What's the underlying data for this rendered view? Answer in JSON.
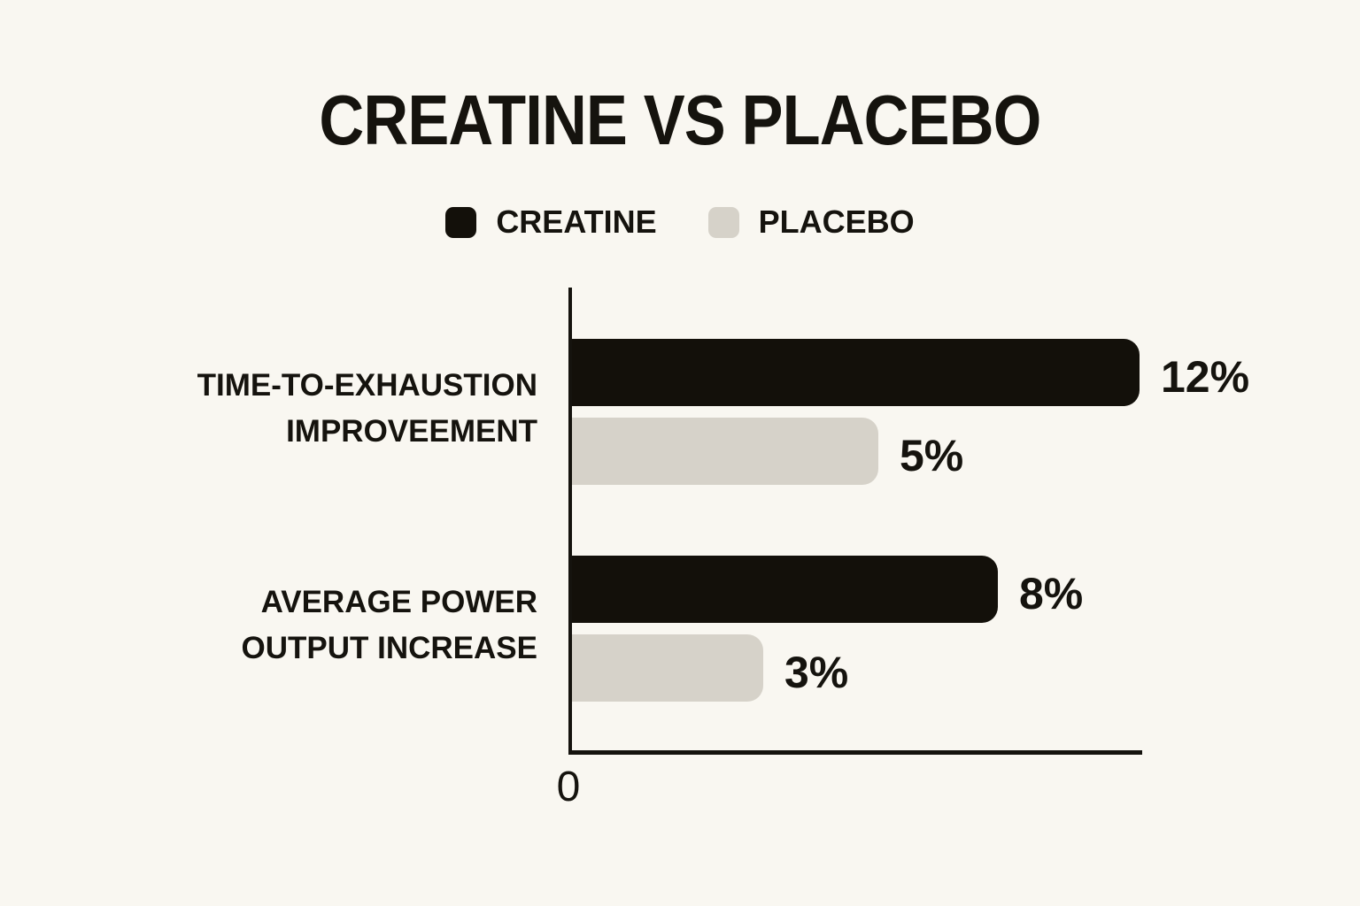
{
  "page": {
    "background": "#f9f7f1",
    "text_color": "#15130e"
  },
  "title": "CREATINE VS PLACEBO",
  "legend": {
    "position": "top",
    "items": [
      {
        "label": "CREATINE",
        "color": "#13100a"
      },
      {
        "label": "PLACEBO",
        "color": "#d6d2c9"
      }
    ]
  },
  "chart_data": {
    "type": "bar",
    "orientation": "horizontal",
    "title": "CREATINE VS PLACEBO",
    "categories": [
      {
        "lines": [
          "TIME-TO-EXHAUSTION",
          "IMPROVEEMENT"
        ]
      },
      {
        "lines": [
          "AVERAGE POWER",
          "OUTPUT INCREASE"
        ]
      }
    ],
    "series": [
      {
        "name": "CREATINE",
        "color": "#13100a",
        "values": [
          12,
          8
        ],
        "value_labels": [
          "12%",
          "8%"
        ],
        "bar_length_pct_of_axis": [
          98.9,
          74.2
        ]
      },
      {
        "name": "PLACEBO",
        "color": "#d6d2c9",
        "values": [
          5,
          3
        ],
        "value_labels": [
          "5%",
          "3%"
        ],
        "bar_length_pct_of_axis": [
          53.4,
          33.3
        ]
      }
    ],
    "unit": "%",
    "x_axis": {
      "origin_tick_label": "0",
      "min": 0
    },
    "grid": false,
    "legend_position": "top"
  }
}
